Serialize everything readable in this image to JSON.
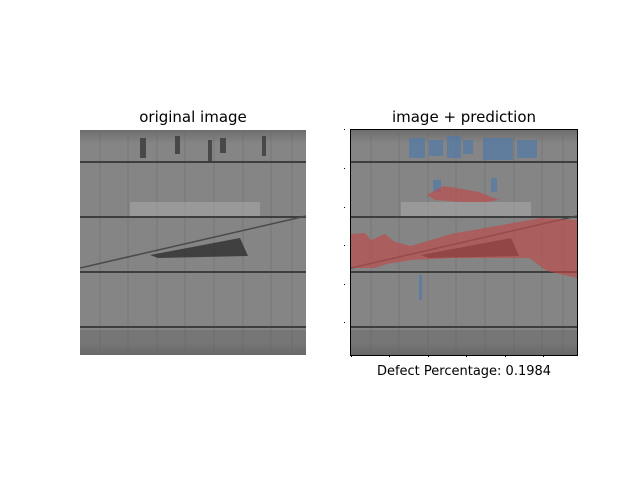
{
  "panels": {
    "left": {
      "title": "original image"
    },
    "right": {
      "title": "image + prediction",
      "caption": "Defect Percentage: 0.1984"
    }
  },
  "colors": {
    "panel_frame": "#555555",
    "cell_gray": "#8a8a8a",
    "busbar": "#3a3a3a",
    "crack_dark": "#2b2b2b",
    "defect_red": "#c04a4a",
    "defect_blue": "#4a79b0"
  }
}
